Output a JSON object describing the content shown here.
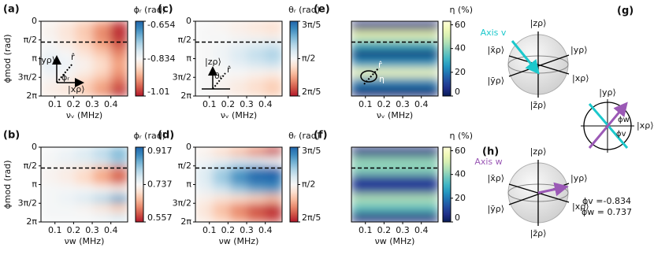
{
  "chart_data": [
    {
      "type": "heatmap",
      "label": "(a)",
      "colorbar_label": "ϕᵣ (rad)",
      "xlabel": "νᵥ (MHz)",
      "ylabel": "ϕmod (rad)",
      "colormap": "RdBu",
      "clim": [
        -1.01,
        -0.654
      ],
      "cticks": [
        -0.654,
        -0.834,
        -1.01
      ],
      "xlim": [
        0.025,
        0.49
      ],
      "xticks": [
        0.1,
        0.2,
        0.3,
        0.4
      ],
      "ylim": [
        0,
        6.2832
      ],
      "y_inverted": true,
      "yticks": [
        0,
        {
          "value": 1.5708,
          "label": "π/2"
        },
        {
          "value": 3.1416,
          "label": "π"
        },
        {
          "value": 4.7124,
          "label": "3π/2"
        },
        {
          "value": 6.2832,
          "label": "2π"
        }
      ],
      "xbins": [
        0.025,
        0.118,
        0.211,
        0.304,
        0.397,
        0.49
      ],
      "ybins": [
        0,
        0.7854,
        1.5708,
        2.3562,
        3.1416,
        3.927,
        4.7124,
        5.4978,
        6.2832
      ],
      "z": [
        [
          -0.84,
          -0.86,
          -0.89,
          -0.93,
          -0.99
        ],
        [
          -0.84,
          -0.86,
          -0.89,
          -0.94,
          -1.0
        ],
        [
          -0.83,
          -0.85,
          -0.88,
          -0.92,
          -0.97
        ],
        [
          -0.82,
          -0.83,
          -0.86,
          -0.89,
          -0.94
        ],
        [
          -0.81,
          -0.82,
          -0.84,
          -0.87,
          -0.92
        ],
        [
          -0.82,
          -0.83,
          -0.85,
          -0.88,
          -0.93
        ],
        [
          -0.84,
          -0.85,
          -0.88,
          -0.91,
          -0.96
        ],
        [
          -0.85,
          -0.86,
          -0.89,
          -0.93,
          -0.99
        ]
      ],
      "hline": 1.75,
      "annotations": [
        "|yρ⟩",
        "r̂",
        "ϕᵣ",
        "|xρ⟩"
      ]
    },
    {
      "type": "heatmap",
      "label": "(b)",
      "colorbar_label": "ϕᵣ (rad)",
      "xlabel": "νw (MHz)",
      "ylabel": "ϕmod (rad)",
      "colormap": "RdBu",
      "clim": [
        0.557,
        0.917
      ],
      "cticks": [
        0.917,
        0.737,
        0.557
      ],
      "xlim": [
        0.025,
        0.49
      ],
      "xticks": [
        0.1,
        0.2,
        0.3,
        0.4
      ],
      "ylim": [
        0,
        6.2832
      ],
      "y_inverted": true,
      "yticks": [
        0,
        {
          "value": 1.5708,
          "label": "π/2"
        },
        {
          "value": 3.1416,
          "label": "π"
        },
        {
          "value": 4.7124,
          "label": "3π/2"
        },
        {
          "value": 6.2832,
          "label": "2π"
        }
      ],
      "xbins": [
        0.025,
        0.118,
        0.211,
        0.304,
        0.397,
        0.49
      ],
      "ybins": [
        0,
        0.7854,
        1.5708,
        2.3562,
        3.1416,
        3.927,
        4.7124,
        5.4978,
        6.2832
      ],
      "z": [
        [
          0.74,
          0.75,
          0.77,
          0.8,
          0.84
        ],
        [
          0.74,
          0.75,
          0.76,
          0.78,
          0.82
        ],
        [
          0.73,
          0.72,
          0.7,
          0.66,
          0.62
        ],
        [
          0.73,
          0.72,
          0.69,
          0.65,
          0.6
        ],
        [
          0.74,
          0.74,
          0.74,
          0.73,
          0.72
        ],
        [
          0.74,
          0.75,
          0.77,
          0.8,
          0.85
        ],
        [
          0.74,
          0.74,
          0.73,
          0.71,
          0.68
        ],
        [
          0.74,
          0.74,
          0.74,
          0.75,
          0.77
        ]
      ],
      "hline": 1.75
    },
    {
      "type": "heatmap",
      "label": "(c)",
      "colorbar_label": "θᵣ (rad)",
      "xlabel": "νᵥ (MHz)",
      "colormap": "RdBu",
      "clim": [
        1.2566,
        1.885
      ],
      "cticks": [
        {
          "value": 1.885,
          "label": "3π/5"
        },
        {
          "value": 1.5708,
          "label": "π/2"
        },
        {
          "value": 1.2566,
          "label": "2π/5"
        }
      ],
      "xlim": [
        0.025,
        0.49
      ],
      "xticks": [
        0.1,
        0.2,
        0.3,
        0.4
      ],
      "ylim": [
        0,
        6.2832
      ],
      "y_inverted": true,
      "yticks": [
        0,
        {
          "value": 1.5708,
          "label": "π/2"
        },
        {
          "value": 3.1416,
          "label": "π"
        },
        {
          "value": 4.7124,
          "label": "3π/2"
        },
        {
          "value": 6.2832,
          "label": "2π"
        }
      ],
      "xbins": [
        0.025,
        0.118,
        0.211,
        0.304,
        0.397,
        0.49
      ],
      "ybins": [
        0,
        0.7854,
        1.5708,
        2.3562,
        3.1416,
        3.927,
        4.7124,
        5.4978,
        6.2832
      ],
      "z": [
        [
          1.57,
          1.56,
          1.54,
          1.52,
          1.5
        ],
        [
          1.57,
          1.57,
          1.56,
          1.55,
          1.54
        ],
        [
          1.57,
          1.58,
          1.6,
          1.62,
          1.64
        ],
        [
          1.57,
          1.59,
          1.63,
          1.67,
          1.7
        ],
        [
          1.57,
          1.58,
          1.61,
          1.64,
          1.66
        ],
        [
          1.57,
          1.57,
          1.57,
          1.56,
          1.55
        ],
        [
          1.57,
          1.56,
          1.54,
          1.51,
          1.48
        ],
        [
          1.57,
          1.56,
          1.53,
          1.5,
          1.47
        ]
      ],
      "hline": 1.75,
      "annotations": [
        "|zρ⟩",
        "θᵣ",
        "r̂"
      ]
    },
    {
      "type": "heatmap",
      "label": "(d)",
      "colorbar_label": "θᵣ (rad)",
      "xlabel": "νw (MHz)",
      "colormap": "RdBu",
      "clim": [
        1.2566,
        1.885
      ],
      "cticks": [
        {
          "value": 1.885,
          "label": "3π/5"
        },
        {
          "value": 1.5708,
          "label": "π/2"
        },
        {
          "value": 1.2566,
          "label": "2π/5"
        }
      ],
      "xlim": [
        0.025,
        0.49
      ],
      "xticks": [
        0.1,
        0.2,
        0.3,
        0.4
      ],
      "ylim": [
        0,
        6.2832
      ],
      "y_inverted": true,
      "yticks": [
        0,
        {
          "value": 1.5708,
          "label": "π/2"
        },
        {
          "value": 3.1416,
          "label": "π"
        },
        {
          "value": 4.7124,
          "label": "3π/2"
        },
        {
          "value": 6.2832,
          "label": "2π"
        }
      ],
      "xbins": [
        0.025,
        0.118,
        0.211,
        0.304,
        0.397,
        0.49
      ],
      "ybins": [
        0,
        0.7854,
        1.5708,
        2.3562,
        3.1416,
        3.927,
        4.7124,
        5.4978,
        6.2832
      ],
      "z": [
        [
          1.55,
          1.5,
          1.45,
          1.38,
          1.3
        ],
        [
          1.58,
          1.6,
          1.63,
          1.62,
          1.58
        ],
        [
          1.62,
          1.7,
          1.78,
          1.85,
          1.88
        ],
        [
          1.62,
          1.72,
          1.82,
          1.88,
          1.88
        ],
        [
          1.6,
          1.65,
          1.72,
          1.78,
          1.8
        ],
        [
          1.55,
          1.52,
          1.5,
          1.48,
          1.45
        ],
        [
          1.52,
          1.45,
          1.38,
          1.32,
          1.28
        ],
        [
          1.53,
          1.47,
          1.4,
          1.34,
          1.3
        ]
      ],
      "hline": 1.75
    },
    {
      "type": "heatmap",
      "label": "(e)",
      "colorbar_label": "η (%)",
      "xlabel": "νᵥ (MHz)",
      "colormap": "YlGnBu",
      "clim": [
        0,
        63
      ],
      "cticks": [
        60,
        40,
        20,
        0
      ],
      "xlim": [
        0.025,
        0.49
      ],
      "xticks": [
        0.1,
        0.2,
        0.3,
        0.4
      ],
      "ylim": [
        0,
        6.2832
      ],
      "y_inverted": true,
      "xbins": [
        0.025,
        0.118,
        0.211,
        0.304,
        0.397,
        0.49
      ],
      "ybins": [
        0,
        0.7854,
        1.5708,
        2.3562,
        3.1416,
        3.927,
        4.7124,
        5.4978,
        6.2832
      ],
      "z": [
        [
          5,
          5,
          5,
          5,
          5
        ],
        [
          55,
          55,
          55,
          55,
          55
        ],
        [
          30,
          30,
          30,
          30,
          30
        ],
        [
          4,
          4,
          4,
          4,
          4
        ],
        [
          25,
          25,
          25,
          25,
          25
        ],
        [
          58,
          58,
          58,
          58,
          58
        ],
        [
          22,
          22,
          22,
          22,
          22
        ],
        [
          4,
          4,
          4,
          4,
          4
        ]
      ],
      "hline": 1.75,
      "annotations": [
        "r̂",
        "η"
      ]
    },
    {
      "type": "heatmap",
      "label": "(f)",
      "colorbar_label": "η (%)",
      "xlabel": "νw (MHz)",
      "colormap": "YlGnBu",
      "clim": [
        0,
        63
      ],
      "cticks": [
        60,
        40,
        20,
        0
      ],
      "xlim": [
        0.025,
        0.49
      ],
      "xticks": [
        0.1,
        0.2,
        0.3,
        0.4
      ],
      "ylim": [
        0,
        6.2832
      ],
      "y_inverted": true,
      "xbins": [
        0.025,
        0.118,
        0.211,
        0.304,
        0.397,
        0.49
      ],
      "ybins": [
        0,
        0.7854,
        1.5708,
        2.3562,
        3.1416,
        3.927,
        4.7124,
        5.4978,
        6.2832
      ],
      "z": [
        [
          5,
          5,
          5,
          5,
          5
        ],
        [
          42,
          42,
          42,
          42,
          42
        ],
        [
          40,
          40,
          40,
          40,
          40
        ],
        [
          8,
          8,
          8,
          8,
          8
        ],
        [
          10,
          10,
          10,
          10,
          10
        ],
        [
          45,
          45,
          45,
          45,
          45
        ],
        [
          35,
          35,
          35,
          35,
          35
        ],
        [
          5,
          5,
          5,
          5,
          5
        ]
      ],
      "hline": 1.75
    }
  ],
  "diagrams": {
    "g": {
      "label": "(g)",
      "axis": "Axis v",
      "states": [
        "|zρ⟩",
        "|x̄ρ⟩",
        "|yρ⟩",
        "|ȳρ⟩",
        "|xρ⟩",
        "|z̄ρ⟩"
      ]
    },
    "h": {
      "label": "(h)",
      "axis": "Axis w",
      "states": [
        "|zρ⟩",
        "|x̄ρ⟩",
        "|yρ⟩",
        "|ȳρ⟩",
        "|xρ⟩",
        "|z̄ρ⟩"
      ]
    },
    "inset": {
      "states": [
        "|yρ⟩",
        "|xρ⟩"
      ],
      "angles": [
        "ϕw",
        "ϕv"
      ]
    },
    "phase_v": "ϕv =-0.834",
    "phase_w": "ϕw = 0.737"
  }
}
